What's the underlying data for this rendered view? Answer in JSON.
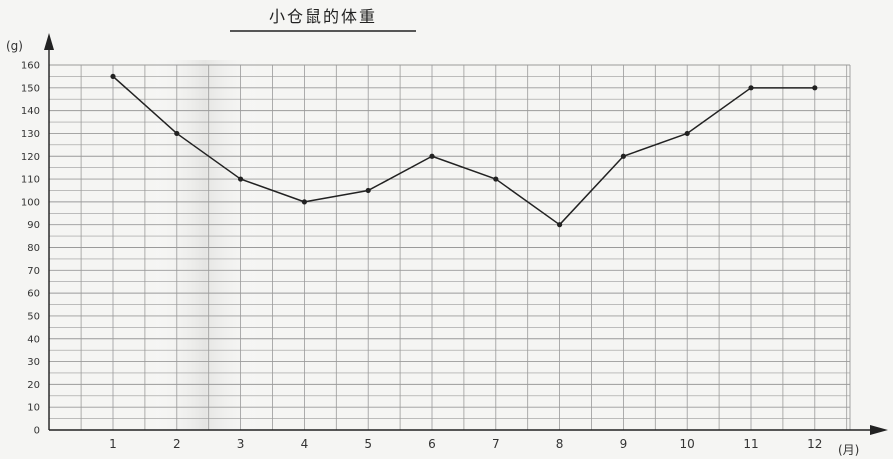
{
  "chart_data": {
    "type": "line",
    "title": "小仓鼠的体重",
    "ylabel": "(g)",
    "xlabel": "(月)",
    "categories": [
      "1",
      "2",
      "3",
      "4",
      "5",
      "6",
      "7",
      "8",
      "9",
      "10",
      "11",
      "12"
    ],
    "values": [
      155,
      130,
      110,
      100,
      105,
      120,
      110,
      90,
      120,
      130,
      150,
      150
    ],
    "ylim": [
      0,
      160
    ],
    "yticks": [
      "0",
      "10",
      "20",
      "30",
      "40",
      "50",
      "60",
      "70",
      "80",
      "90",
      "100",
      "110",
      "120",
      "130",
      "140",
      "150",
      "160"
    ],
    "grid": true,
    "colors": {
      "line": "#222222",
      "grid": "#9a9a9a",
      "axis": "#222222"
    }
  }
}
